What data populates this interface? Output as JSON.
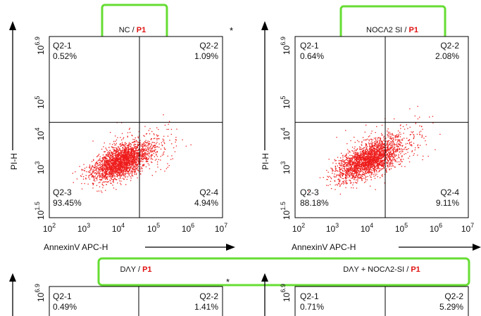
{
  "chart_data": [
    {
      "type": "scatter",
      "title": "NC / P1",
      "title_main": "NC / ",
      "title_gate": "P1",
      "xlabel": "AnnexinV APC-H",
      "ylabel": "PI-H",
      "x_scale": "log",
      "y_scale": "log",
      "xlim": [
        100,
        10000000
      ],
      "ylim": [
        31.6,
        7943282
      ],
      "x_ticks": [
        {
          "base": "10",
          "exp": "2"
        },
        {
          "base": "10",
          "exp": "3"
        },
        {
          "base": "10",
          "exp": "4"
        },
        {
          "base": "10",
          "exp": "5"
        },
        {
          "base": "10",
          "exp": "6"
        },
        {
          "base": "10",
          "exp": "7"
        }
      ],
      "y_ticks": [
        {
          "base": "10",
          "exp": "1.5"
        },
        {
          "base": "10",
          "exp": "3"
        },
        {
          "base": "10",
          "exp": "4"
        },
        {
          "base": "10",
          "exp": "5"
        },
        {
          "base": "10",
          "exp": "6.9"
        }
      ],
      "gate_x": 40000,
      "gate_y": 22000,
      "quadrants": [
        {
          "name": "Q2-1",
          "value": "0.52%",
          "pos": "top-left"
        },
        {
          "name": "Q2-2",
          "value": "1.09%",
          "pos": "top-right"
        },
        {
          "name": "Q2-3",
          "value": "93.45%",
          "pos": "bottom-left"
        },
        {
          "name": "Q2-4",
          "value": "4.94%",
          "pos": "bottom-right"
        }
      ],
      "cluster": {
        "center_x": 12000,
        "center_y": 1500,
        "spread_x": 0.42,
        "spread_y": 0.28,
        "corr": 0.55,
        "count": 2600
      },
      "marker": "*",
      "point_color": "#ee1c1c"
    },
    {
      "type": "scatter",
      "title": "NOCA2 SI / P1",
      "title_main": "NOCΛ2 SI / ",
      "title_gate": "P1",
      "xlabel": "AnnexinV APC-H",
      "ylabel": "PI-H",
      "x_scale": "log",
      "y_scale": "log",
      "xlim": [
        100,
        10000000
      ],
      "ylim": [
        31.6,
        7943282
      ],
      "x_ticks": [
        {
          "base": "10",
          "exp": "2"
        },
        {
          "base": "10",
          "exp": "3"
        },
        {
          "base": "10",
          "exp": "4"
        },
        {
          "base": "10",
          "exp": "5"
        },
        {
          "base": "10",
          "exp": "6"
        },
        {
          "base": "10",
          "exp": "7"
        }
      ],
      "y_ticks": [
        {
          "base": "10",
          "exp": "1.5"
        },
        {
          "base": "10",
          "exp": "3"
        },
        {
          "base": "10",
          "exp": "4"
        },
        {
          "base": "10",
          "exp": "5"
        },
        {
          "base": "10",
          "exp": "6.9"
        }
      ],
      "gate_x": 40000,
      "gate_y": 22000,
      "quadrants": [
        {
          "name": "Q2-1",
          "value": "0.64%",
          "pos": "top-left"
        },
        {
          "name": "Q2-2",
          "value": "2.08%",
          "pos": "top-right"
        },
        {
          "name": "Q2-3",
          "value": "88.18%",
          "pos": "bottom-left"
        },
        {
          "name": "Q2-4",
          "value": "9.11%",
          "pos": "bottom-right"
        }
      ],
      "cluster": {
        "center_x": 13000,
        "center_y": 1700,
        "spread_x": 0.45,
        "spread_y": 0.3,
        "corr": 0.6,
        "count": 2600
      },
      "marker": "",
      "point_color": "#ee1c1c"
    },
    {
      "type": "scatter",
      "title": "DAY / P1",
      "title_main": "DΛY / ",
      "title_gate": "P1",
      "y_ticks": [
        {
          "base": "10",
          "exp": "6.9"
        }
      ],
      "quadrants": [
        {
          "name": "Q2-1",
          "value": "0.49%",
          "pos": "top-left"
        },
        {
          "name": "Q2-2",
          "value": "1.41%",
          "pos": "top-right"
        }
      ],
      "marker": "*"
    },
    {
      "type": "scatter",
      "title": "DAY + NOCA2-SI / P1",
      "title_main": "DΛY + NOCΛ2-SI / ",
      "title_gate": "P1",
      "y_ticks": [
        {
          "base": "10",
          "exp": "6.9"
        }
      ],
      "quadrants": [
        {
          "name": "Q2-1",
          "value": "0.71%",
          "pos": "top-left"
        },
        {
          "name": "Q2-2",
          "value": "5.29%",
          "pos": "top-right"
        }
      ],
      "marker": ""
    }
  ]
}
